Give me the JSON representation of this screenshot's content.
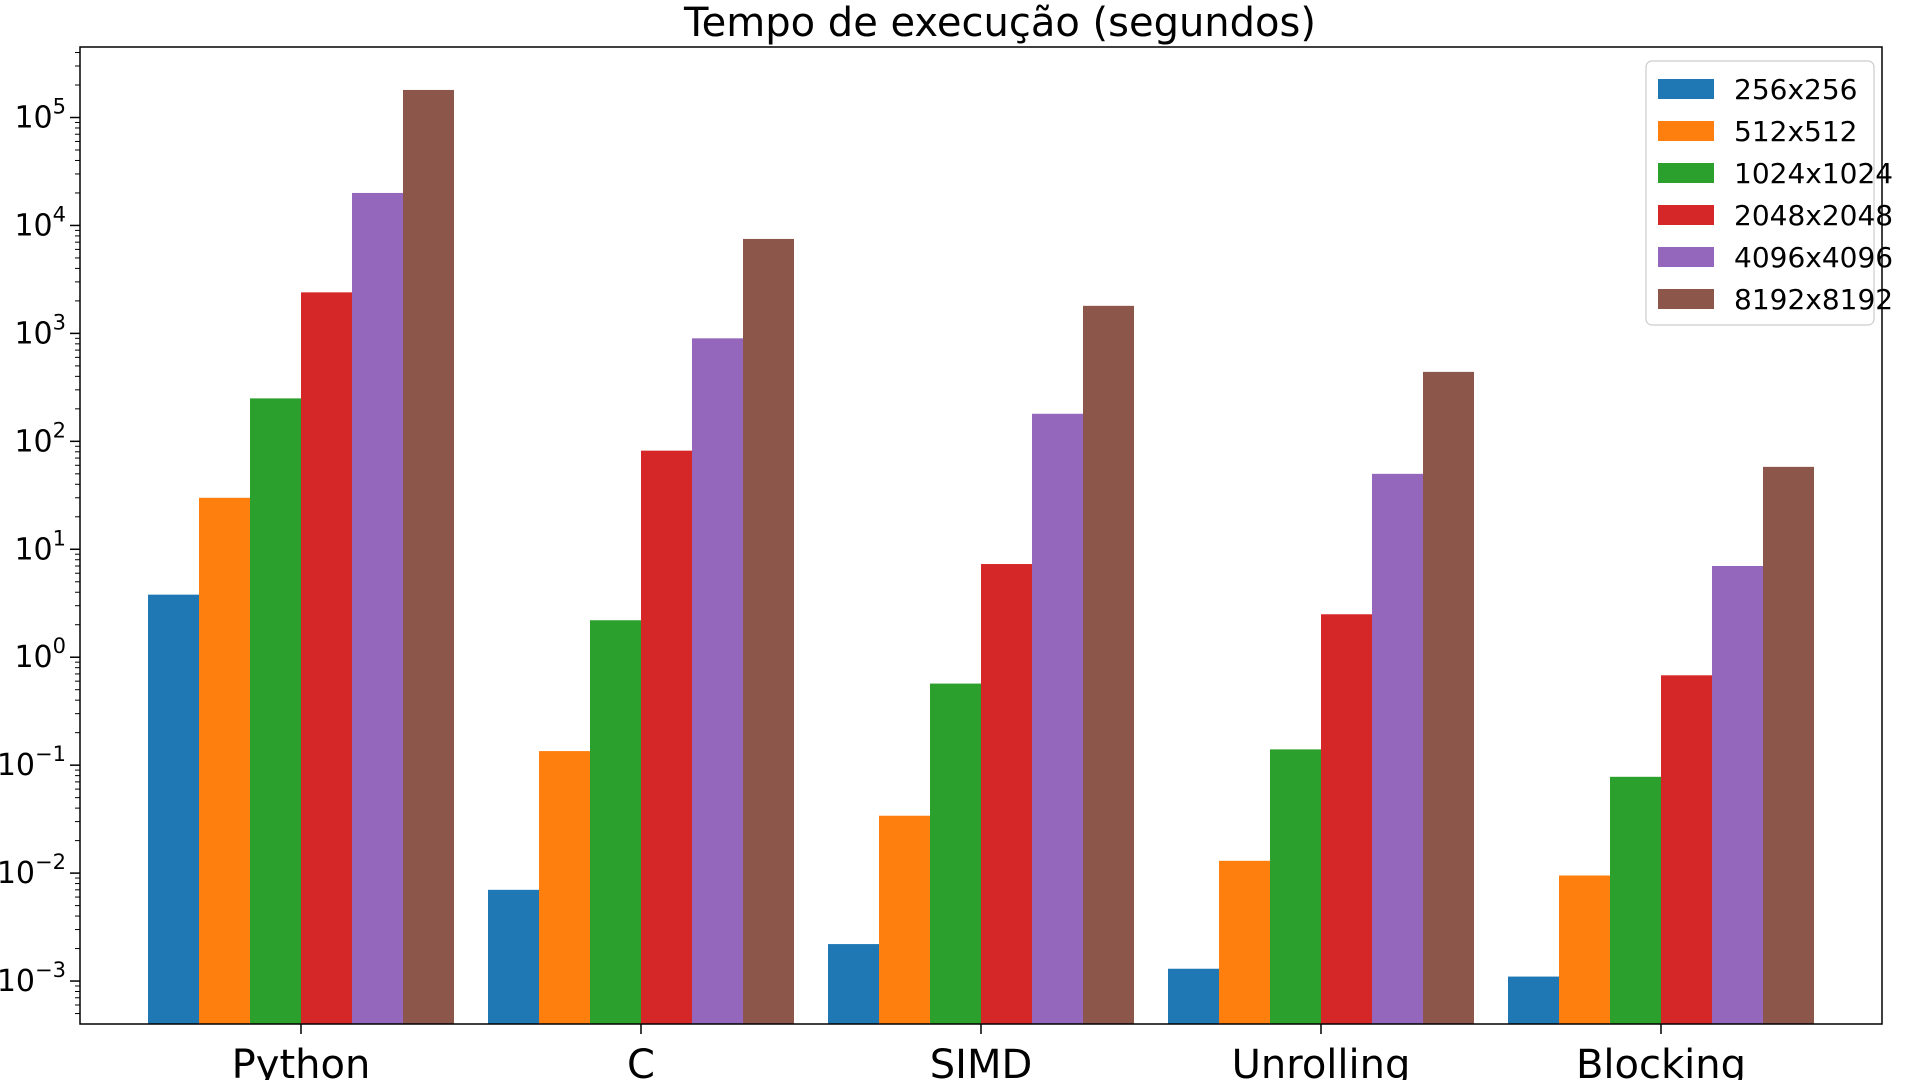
{
  "chart_data": {
    "type": "bar",
    "title": "Tempo de execução (segundos)",
    "xlabel": "",
    "ylabel": "",
    "yscale": "log",
    "ylim": [
      0.0004,
      450000
    ],
    "yticks": [
      {
        "value": 0.001,
        "base": "10",
        "exp": "−3"
      },
      {
        "value": 0.01,
        "base": "10",
        "exp": "−2"
      },
      {
        "value": 0.1,
        "base": "10",
        "exp": "−1"
      },
      {
        "value": 1,
        "base": "10",
        "exp": "0"
      },
      {
        "value": 10,
        "base": "10",
        "exp": "1"
      },
      {
        "value": 100,
        "base": "10",
        "exp": "2"
      },
      {
        "value": 1000,
        "base": "10",
        "exp": "3"
      },
      {
        "value": 10000,
        "base": "10",
        "exp": "4"
      },
      {
        "value": 100000,
        "base": "10",
        "exp": "5"
      }
    ],
    "categories": [
      "Python",
      "C",
      "SIMD",
      "Unrolling",
      "Blocking"
    ],
    "legend_position": "top-right",
    "grid": false,
    "series": [
      {
        "name": "256x256",
        "color": "#1f77b4",
        "values": [
          3.8,
          0.007,
          0.0022,
          0.0013,
          0.0011
        ]
      },
      {
        "name": "512x512",
        "color": "#ff7f0e",
        "values": [
          30,
          0.135,
          0.034,
          0.013,
          0.0095
        ]
      },
      {
        "name": "1024x1024",
        "color": "#2ca02c",
        "values": [
          250,
          2.2,
          0.57,
          0.14,
          0.078
        ]
      },
      {
        "name": "2048x2048",
        "color": "#d62728",
        "values": [
          2400,
          82,
          7.3,
          2.5,
          0.68
        ]
      },
      {
        "name": "4096x4096",
        "color": "#9467bd",
        "values": [
          20000,
          900,
          180,
          50,
          7
        ]
      },
      {
        "name": "8192x8192",
        "color": "#8c564b",
        "values": [
          180000,
          7500,
          1800,
          440,
          58
        ]
      }
    ]
  }
}
